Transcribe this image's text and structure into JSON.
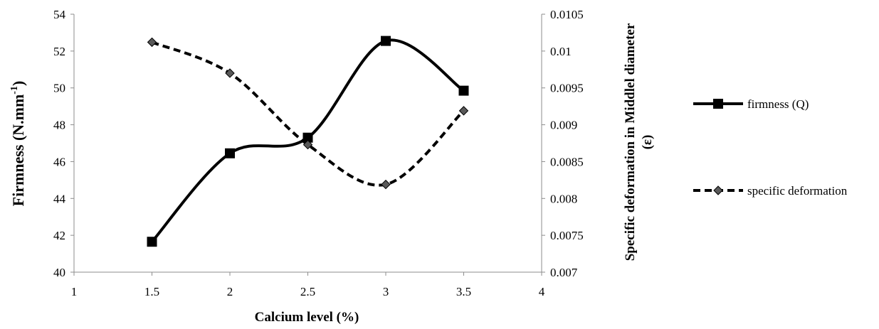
{
  "chart_data": {
    "type": "line",
    "xlabel": "Calcium level (%)",
    "ylabel": "Firmness (N.mm",
    "ylabel_sup": "-1",
    "ylabel_close": ")",
    "y2label": "Specific deformation in Middlel diameter",
    "y2label_line2": "(ε)",
    "xlim": [
      1,
      4
    ],
    "ylim": [
      40,
      54
    ],
    "y2lim": [
      0.007,
      0.0105
    ],
    "x_ticks": [
      "1",
      "1.5",
      "2",
      "2.5",
      "3",
      "3.5",
      "4"
    ],
    "y_ticks": [
      "40",
      "42",
      "44",
      "46",
      "48",
      "50",
      "52",
      "54"
    ],
    "y2_ticks": [
      "0.007",
      "0.0075",
      "0.008",
      "0.0085",
      "0.009",
      "0.0095",
      "0.01",
      "0.0105"
    ],
    "grid": false,
    "legend_position": "right",
    "series": [
      {
        "name": "firmness (Q)",
        "axis": "left",
        "x": [
          1.5,
          2,
          2.5,
          3,
          3.5
        ],
        "values": [
          41.65,
          46.45,
          47.3,
          52.55,
          49.85
        ],
        "style": "solid",
        "marker": "square",
        "color": "#000000"
      },
      {
        "name": "specific deformation",
        "axis": "right",
        "x": [
          1.5,
          2,
          2.5,
          3,
          3.5
        ],
        "values": [
          0.01012,
          0.0097,
          0.00873,
          0.00819,
          0.00919
        ],
        "style": "dashed",
        "marker": "diamond",
        "color": "#000000",
        "marker_color": "#595959"
      }
    ]
  }
}
